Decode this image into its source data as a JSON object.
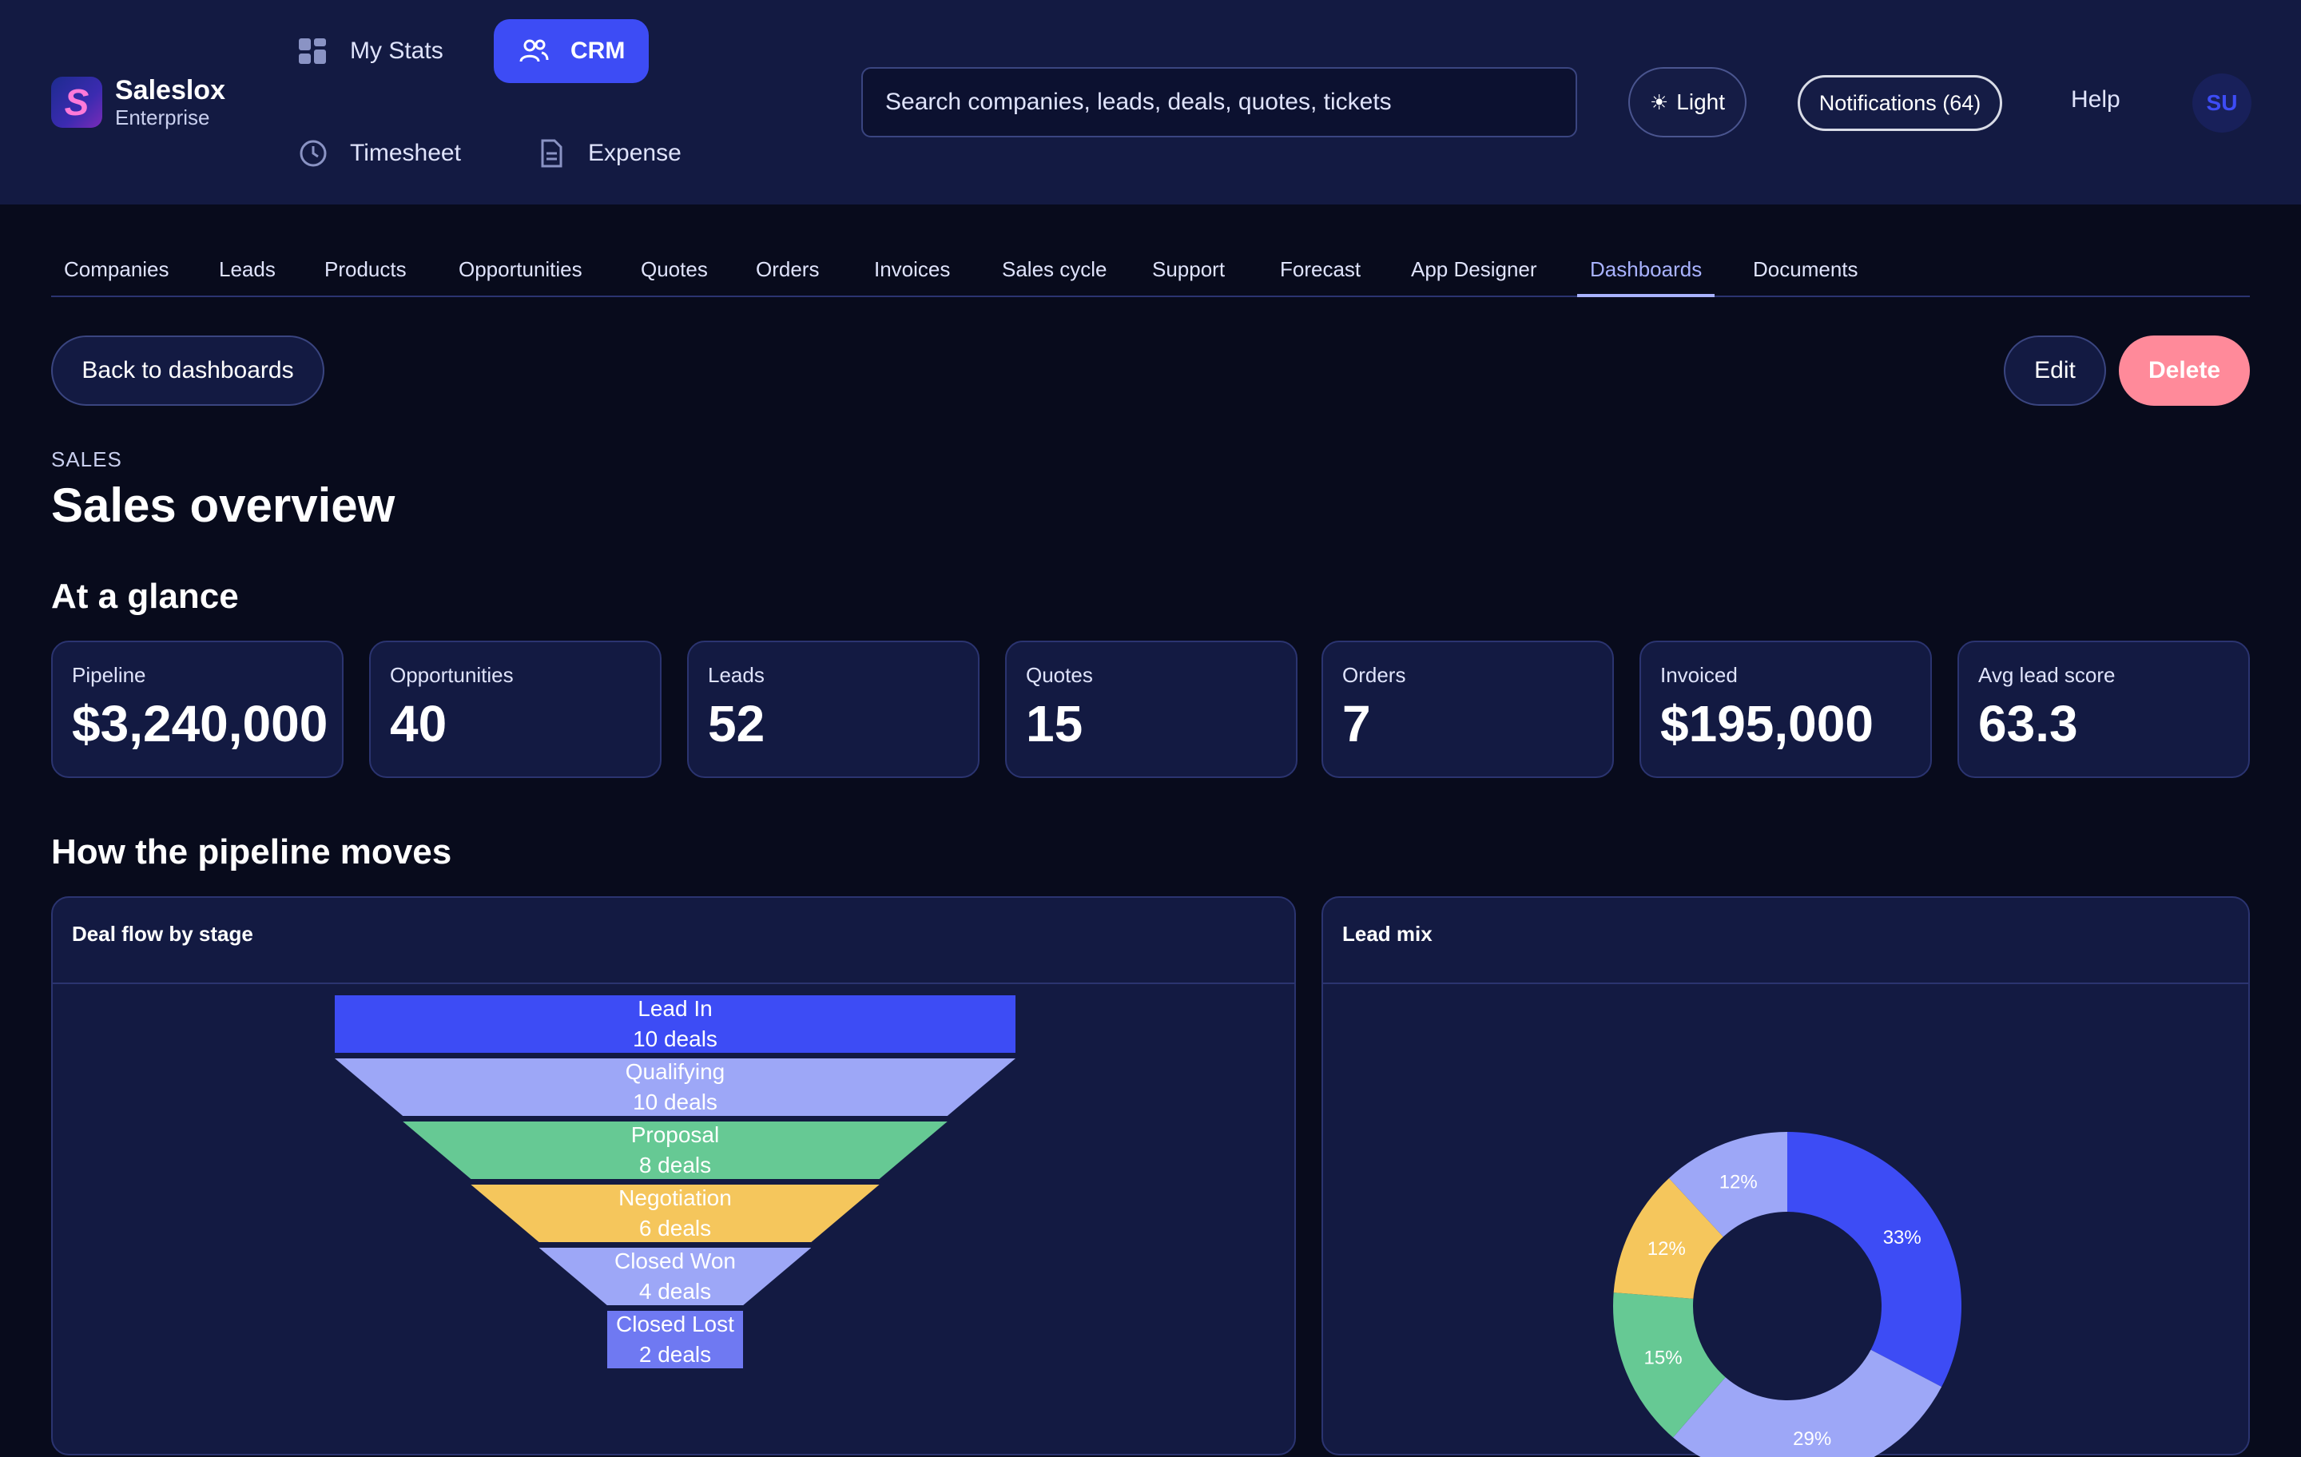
{
  "brand": {
    "name": "Saleslox",
    "edition": "Enterprise",
    "logo_letter": "S"
  },
  "app_nav": [
    {
      "label": "My Stats",
      "icon": "grid-icon"
    },
    {
      "label": "CRM",
      "icon": "users-icon",
      "active": true
    },
    {
      "label": "Timesheet",
      "icon": "clock-icon"
    },
    {
      "label": "Expense",
      "icon": "document-icon"
    }
  ],
  "search": {
    "placeholder": "Search companies, leads, deals, quotes, tickets",
    "value": ""
  },
  "header": {
    "theme_label": "Light",
    "theme_icon": "sun-icon",
    "notifications_label": "Notifications (64)",
    "help_label": "Help",
    "avatar_initials": "SU"
  },
  "module_tabs": [
    {
      "label": "Companies"
    },
    {
      "label": "Leads"
    },
    {
      "label": "Products"
    },
    {
      "label": "Opportunities"
    },
    {
      "label": "Quotes"
    },
    {
      "label": "Orders"
    },
    {
      "label": "Invoices"
    },
    {
      "label": "Sales cycle"
    },
    {
      "label": "Support"
    },
    {
      "label": "Forecast"
    },
    {
      "label": "App Designer"
    },
    {
      "label": "Dashboards",
      "active": true
    },
    {
      "label": "Documents"
    }
  ],
  "actions": {
    "back_label": "Back to dashboards",
    "edit_label": "Edit",
    "delete_label": "Delete"
  },
  "page": {
    "eyebrow": "SALES",
    "title": "Sales overview",
    "glance_title": "At a glance",
    "pipeline_title": "How the pipeline moves"
  },
  "kpis": [
    {
      "label": "Pipeline",
      "value": "$3,240,000"
    },
    {
      "label": "Opportunities",
      "value": "40"
    },
    {
      "label": "Leads",
      "value": "52"
    },
    {
      "label": "Quotes",
      "value": "15"
    },
    {
      "label": "Orders",
      "value": "7"
    },
    {
      "label": "Invoiced",
      "value": "$195,000"
    },
    {
      "label": "Avg lead score",
      "value": "63.3"
    }
  ],
  "panels": {
    "funnel_title": "Deal flow by stage",
    "donut_title": "Lead mix"
  },
  "colors": {
    "accent": "#3d4cf5",
    "lavender": "#9da7f7",
    "green": "#66c994",
    "yellow": "#f5c65c",
    "periwinkle": "#6f79f2",
    "delete": "#ff8a9a"
  },
  "chart_data": [
    {
      "type": "funnel",
      "title": "Deal flow by stage",
      "categories": [
        "Lead In",
        "Qualifying",
        "Proposal",
        "Negotiation",
        "Closed Won",
        "Closed Lost"
      ],
      "values": [
        10,
        10,
        8,
        6,
        4,
        2
      ],
      "value_labels": [
        "10 deals",
        "10 deals",
        "8 deals",
        "6 deals",
        "4 deals",
        "2 deals"
      ],
      "colors": [
        "#3d4cf5",
        "#9da7f7",
        "#66c994",
        "#f5c65c",
        "#9da7f7",
        "#6f79f2"
      ]
    },
    {
      "type": "pie",
      "title": "Lead mix",
      "donut": true,
      "values": [
        33,
        29,
        15,
        12,
        12
      ],
      "labels": [
        "33%",
        "29%",
        "15%",
        "12%",
        "12%"
      ],
      "colors": [
        "#3d4cf5",
        "#9da7f7",
        "#66c994",
        "#f5c65c",
        "#9da7f7"
      ]
    }
  ]
}
